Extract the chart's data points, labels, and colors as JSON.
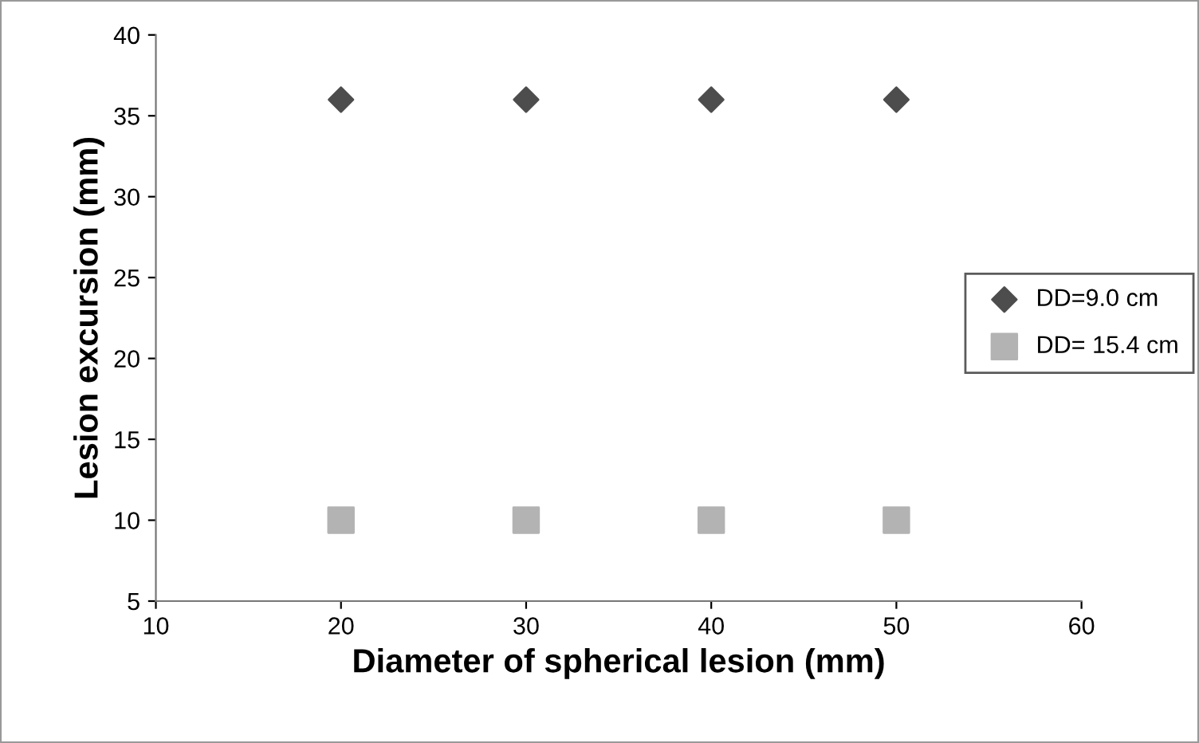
{
  "chart_data": {
    "type": "scatter",
    "xlabel": "Diameter of spherical lesion (mm)",
    "ylabel": "Lesion excursion (mm)",
    "xlim": [
      10,
      60
    ],
    "xticks": [
      10,
      20,
      30,
      40,
      50,
      60
    ],
    "ylim": [
      5,
      40
    ],
    "yticks": [
      5,
      10,
      15,
      20,
      25,
      30,
      35,
      40
    ],
    "x": [
      20,
      30,
      40,
      50
    ],
    "grid": false,
    "legend": "right",
    "series": [
      {
        "name": "DD=9.0 cm",
        "color": "#4d4d4d",
        "marker": "diamond",
        "values": [
          36,
          36,
          36,
          36
        ]
      },
      {
        "name": "DD= 15.4 cm",
        "color": "#b3b3b3",
        "marker": "square",
        "values": [
          10,
          10,
          10,
          10
        ]
      }
    ]
  }
}
